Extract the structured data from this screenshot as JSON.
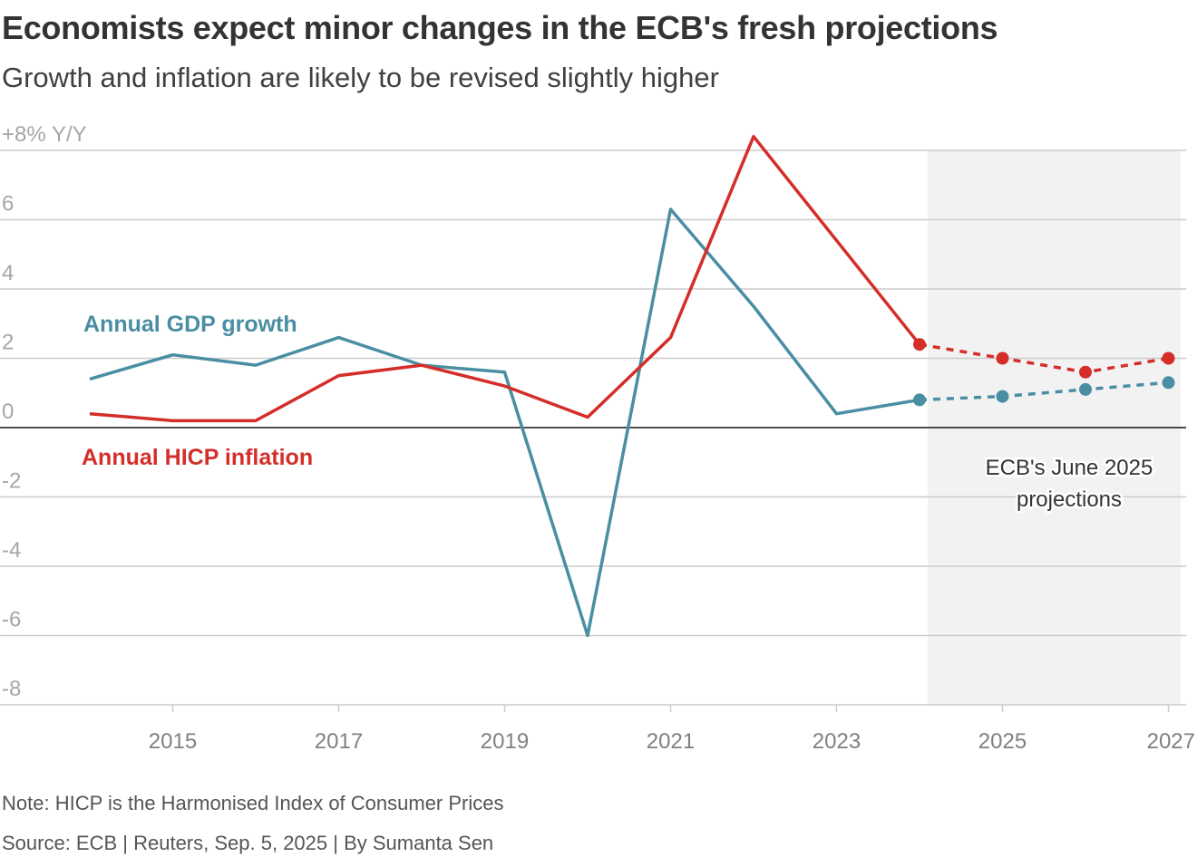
{
  "header": {
    "title": "Economists expect minor changes in the ECB's fresh projections",
    "subtitle": "Growth and inflation are likely to be revised slightly higher"
  },
  "footer": {
    "note": "Note: HICP is the Harmonised Index of Consumer Prices",
    "source": "Source: ECB | Reuters, Sep. 5, 2025 | By Sumanta Sen"
  },
  "chart_data": {
    "type": "line",
    "ylim": [
      -8,
      8
    ],
    "xlim": [
      2014,
      2027
    ],
    "y_ticks": [
      {
        "value": 8,
        "label": "+8% Y/Y"
      },
      {
        "value": 6,
        "label": "6"
      },
      {
        "value": 4,
        "label": "4"
      },
      {
        "value": 2,
        "label": "2"
      },
      {
        "value": 0,
        "label": "0"
      },
      {
        "value": -2,
        "label": "-2"
      },
      {
        "value": -4,
        "label": "-4"
      },
      {
        "value": -6,
        "label": "-6"
      },
      {
        "value": -8,
        "label": "-8"
      }
    ],
    "x_ticks": [
      "2015",
      "2017",
      "2019",
      "2021",
      "2023",
      "2025",
      "2027"
    ],
    "grid": true,
    "projection_region": {
      "from": 2024,
      "to": 2027,
      "label_lines": [
        "ECB's June 2025",
        "projections"
      ]
    },
    "series": [
      {
        "name": "Annual GDP growth",
        "color": "#4a8ea3",
        "actual": {
          "x": [
            2014,
            2015,
            2016,
            2017,
            2018,
            2019,
            2020,
            2021,
            2022,
            2023,
            2024
          ],
          "y": [
            1.4,
            2.1,
            1.8,
            2.6,
            1.8,
            1.6,
            -6.0,
            6.3,
            3.5,
            0.4,
            0.8
          ]
        },
        "projection": {
          "x": [
            2024,
            2025,
            2026,
            2027
          ],
          "y": [
            0.8,
            0.9,
            1.1,
            1.3
          ]
        }
      },
      {
        "name": "Annual HICP inflation",
        "color": "#d42e2a",
        "actual": {
          "x": [
            2014,
            2015,
            2016,
            2017,
            2018,
            2019,
            2020,
            2021,
            2022,
            2023,
            2024
          ],
          "y": [
            0.4,
            0.2,
            0.2,
            1.5,
            1.8,
            1.2,
            0.3,
            2.6,
            8.4,
            5.4,
            2.4
          ]
        },
        "projection": {
          "x": [
            2024,
            2025,
            2026,
            2027
          ],
          "y": [
            2.4,
            2.0,
            1.6,
            2.0
          ]
        }
      }
    ]
  }
}
